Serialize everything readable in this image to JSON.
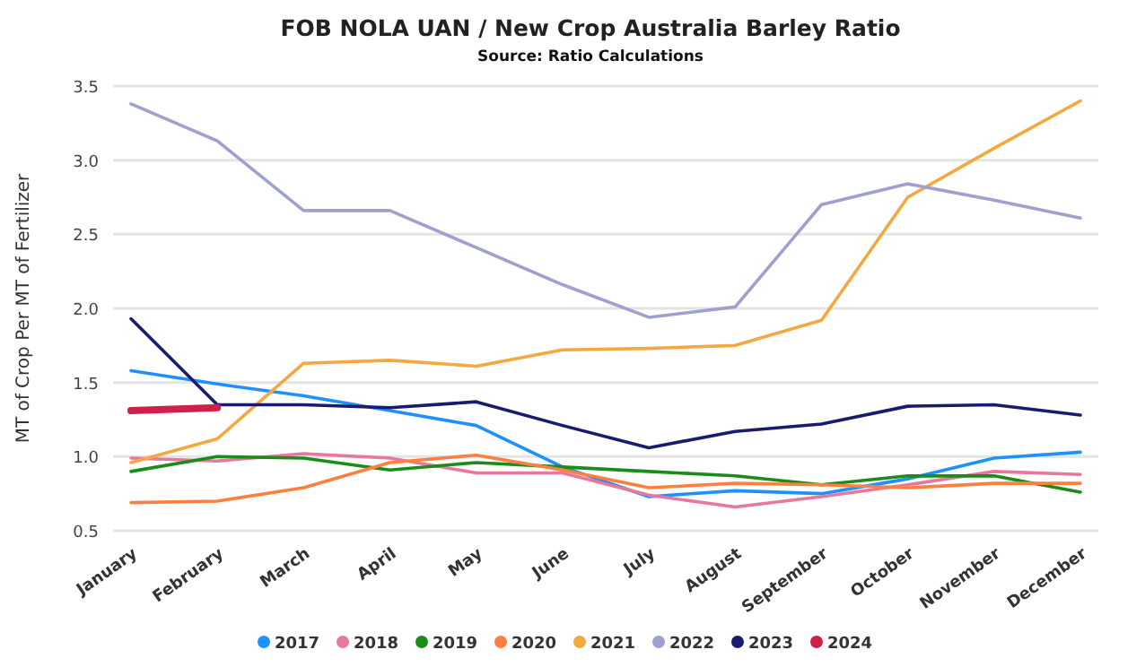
{
  "chart_data": {
    "type": "line",
    "title": "FOB NOLA UAN / New Crop Australia Barley Ratio",
    "subtitle": "Source: Ratio Calculations",
    "ylabel": "MT of Crop Per MT of Fertilizer",
    "categories": [
      "January",
      "February",
      "March",
      "April",
      "May",
      "June",
      "July",
      "August",
      "September",
      "October",
      "November",
      "December"
    ],
    "ylim": [
      0.5,
      3.5
    ],
    "yticks": [
      {
        "value": 0.5,
        "label": "0.5"
      },
      {
        "value": 1,
        "label": "1.0"
      },
      {
        "value": 1.5,
        "label": "1.5"
      },
      {
        "value": 2,
        "label": "2.0"
      },
      {
        "value": 2.5,
        "label": "2.5"
      },
      {
        "value": 3,
        "label": "3.0"
      },
      {
        "value": 3.5,
        "label": "3.5"
      }
    ],
    "grid": "y",
    "legend": "bottom",
    "marker": "none",
    "series": [
      {
        "name": "2017",
        "color": "#1e90ff",
        "values": [
          1.58,
          1.49,
          1.41,
          1.31,
          1.21,
          0.93,
          0.73,
          0.77,
          0.75,
          0.85,
          0.99,
          1.03
        ]
      },
      {
        "name": "2018",
        "color": "#e8789a",
        "values": [
          0.99,
          0.97,
          1.02,
          0.99,
          0.89,
          0.89,
          0.74,
          0.66,
          0.73,
          0.81,
          0.9,
          0.88
        ]
      },
      {
        "name": "2019",
        "color": "#1a8c1a",
        "values": [
          0.9,
          1.0,
          0.99,
          0.91,
          0.96,
          0.93,
          0.9,
          0.87,
          0.81,
          0.87,
          0.87,
          0.76
        ]
      },
      {
        "name": "2020",
        "color": "#ff7f3f",
        "values": [
          0.69,
          0.7,
          0.79,
          0.96,
          1.01,
          0.91,
          0.79,
          0.82,
          0.81,
          0.79,
          0.82,
          0.82
        ]
      },
      {
        "name": "2021",
        "color": "#f5a742",
        "values": [
          0.96,
          1.12,
          1.63,
          1.65,
          1.61,
          1.72,
          1.73,
          1.75,
          1.92,
          2.75,
          3.08,
          3.4
        ]
      },
      {
        "name": "2022",
        "color": "#9fa0cf",
        "values": [
          3.38,
          3.13,
          2.66,
          2.66,
          2.41,
          2.16,
          1.94,
          2.01,
          2.7,
          2.84,
          2.73,
          2.61
        ]
      },
      {
        "name": "2023",
        "color": "#1a1a6e",
        "values": [
          1.93,
          1.35,
          1.35,
          1.33,
          1.37,
          1.21,
          1.06,
          1.17,
          1.22,
          1.34,
          1.35,
          1.28
        ]
      },
      {
        "name": "2024",
        "color": "#d0204a",
        "values": [
          1.31,
          1.33,
          null,
          null,
          null,
          null,
          null,
          null,
          null,
          null,
          null,
          null
        ]
      }
    ]
  }
}
